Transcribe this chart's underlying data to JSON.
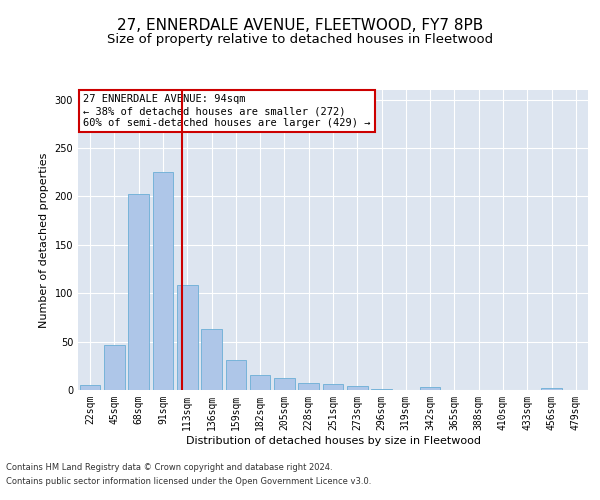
{
  "title": "27, ENNERDALE AVENUE, FLEETWOOD, FY7 8PB",
  "subtitle": "Size of property relative to detached houses in Fleetwood",
  "xlabel": "Distribution of detached houses by size in Fleetwood",
  "ylabel": "Number of detached properties",
  "bar_labels": [
    "22sqm",
    "45sqm",
    "68sqm",
    "91sqm",
    "113sqm",
    "136sqm",
    "159sqm",
    "182sqm",
    "205sqm",
    "228sqm",
    "251sqm",
    "273sqm",
    "296sqm",
    "319sqm",
    "342sqm",
    "365sqm",
    "388sqm",
    "410sqm",
    "433sqm",
    "456sqm",
    "479sqm"
  ],
  "bar_values": [
    5,
    46,
    203,
    225,
    108,
    63,
    31,
    15,
    12,
    7,
    6,
    4,
    1,
    0,
    3,
    0,
    0,
    0,
    0,
    2,
    0
  ],
  "bar_color": "#aec6e8",
  "bar_edge_color": "#6baed6",
  "vline_x": 3.78,
  "vline_color": "#cc0000",
  "annotation_line1": "27 ENNERDALE AVENUE: 94sqm",
  "annotation_line2": "← 38% of detached houses are smaller (272)",
  "annotation_line3": "60% of semi-detached houses are larger (429) →",
  "annotation_box_color": "#ffffff",
  "annotation_box_edge": "#cc0000",
  "ylim": [
    0,
    310
  ],
  "yticks": [
    0,
    50,
    100,
    150,
    200,
    250,
    300
  ],
  "bg_color": "#dde5f0",
  "footer1": "Contains HM Land Registry data © Crown copyright and database right 2024.",
  "footer2": "Contains public sector information licensed under the Open Government Licence v3.0.",
  "title_fontsize": 11,
  "subtitle_fontsize": 9.5,
  "label_fontsize": 8,
  "tick_fontsize": 7,
  "annotation_fontsize": 7.5
}
